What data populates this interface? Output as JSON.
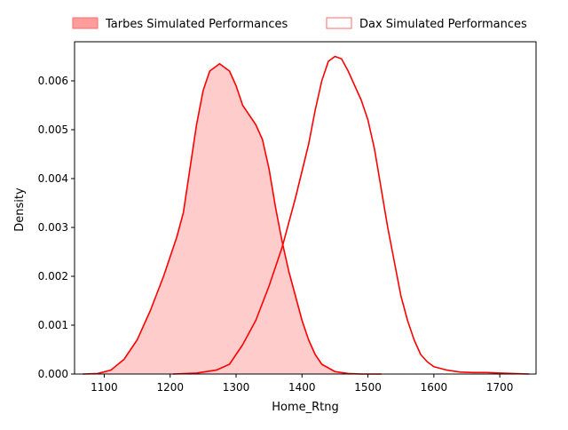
{
  "chart_data": {
    "type": "area",
    "title": "",
    "xlabel": "Home_Rtng",
    "ylabel": "Density",
    "xlim": [
      1055,
      1755
    ],
    "ylim": [
      0,
      0.0068
    ],
    "xticks": [
      1100,
      1200,
      1300,
      1400,
      1500,
      1600,
      1700
    ],
    "yticks": [
      0.0,
      0.001,
      0.002,
      0.003,
      0.004,
      0.005,
      0.006
    ],
    "ytick_labels": [
      "0.000",
      "0.001",
      "0.002",
      "0.003",
      "0.004",
      "0.005",
      "0.006"
    ],
    "grid": false,
    "legend_placement": "top-center, outside plot",
    "series": [
      {
        "name": "Tarbes Simulated Performances",
        "style": "filled",
        "color": "#ff0000",
        "x": [
          1068,
          1090,
          1110,
          1130,
          1150,
          1170,
          1190,
          1210,
          1220,
          1230,
          1240,
          1250,
          1260,
          1270,
          1275,
          1290,
          1300,
          1310,
          1320,
          1330,
          1340,
          1350,
          1360,
          1370,
          1380,
          1390,
          1400,
          1410,
          1420,
          1430,
          1450,
          1470,
          1490,
          1510,
          1520
        ],
        "y": [
          0.0,
          1e-05,
          8e-05,
          0.0003,
          0.0007,
          0.0013,
          0.002,
          0.0028,
          0.0033,
          0.0042,
          0.0051,
          0.0058,
          0.0062,
          0.0063,
          0.00635,
          0.0062,
          0.0059,
          0.0055,
          0.0053,
          0.0051,
          0.0048,
          0.0042,
          0.0034,
          0.0027,
          0.0021,
          0.0016,
          0.0011,
          0.0007,
          0.0004,
          0.0002,
          5e-05,
          1e-05,
          0.0,
          0.0,
          0.0
        ]
      },
      {
        "name": "Dax Simulated Performances",
        "style": "line",
        "color": "#ff0000",
        "x": [
          1205,
          1240,
          1270,
          1290,
          1310,
          1330,
          1350,
          1370,
          1390,
          1410,
          1420,
          1430,
          1440,
          1450,
          1460,
          1470,
          1480,
          1490,
          1500,
          1510,
          1520,
          1530,
          1540,
          1550,
          1560,
          1570,
          1580,
          1590,
          1600,
          1620,
          1640,
          1660,
          1680,
          1700,
          1720,
          1744
        ],
        "y": [
          0.0,
          2e-05,
          8e-05,
          0.0002,
          0.0006,
          0.0011,
          0.0018,
          0.0026,
          0.0036,
          0.0047,
          0.0054,
          0.006,
          0.0064,
          0.0065,
          0.00645,
          0.0062,
          0.0059,
          0.0056,
          0.0052,
          0.0046,
          0.0038,
          0.003,
          0.0023,
          0.0016,
          0.0011,
          0.0007,
          0.0004,
          0.00025,
          0.00015,
          8e-05,
          4e-05,
          3e-05,
          3e-05,
          2e-05,
          1e-05,
          0.0
        ]
      }
    ]
  }
}
